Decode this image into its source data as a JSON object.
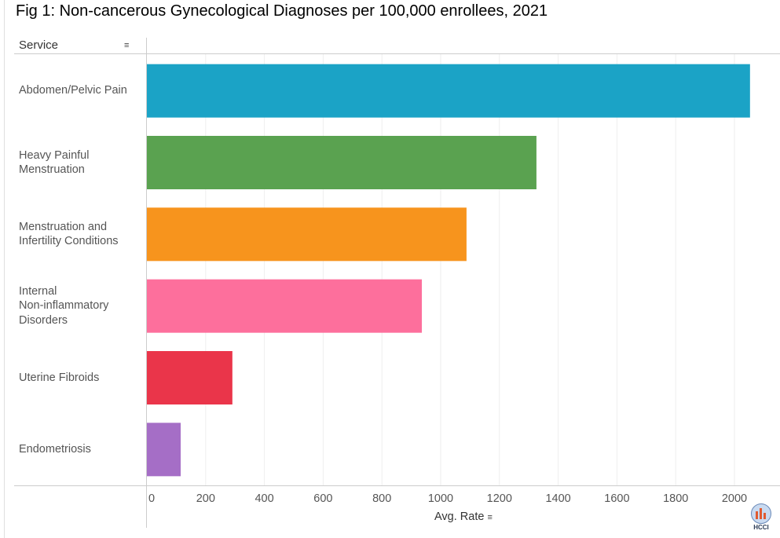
{
  "title": "Fig 1: Non-cancerous Gynecological Diagnoses per 100,000 enrollees, 2021",
  "logo_text": "HCCI",
  "chart_data": {
    "type": "bar",
    "orientation": "horizontal",
    "title": "Fig 1: Non-cancerous Gynecological Diagnoses per 100,000 enrollees, 2021",
    "category_header": "Service",
    "xlabel": "Avg. Rate",
    "xlim": [
      0,
      2100
    ],
    "xticks": [
      0,
      200,
      400,
      600,
      800,
      1000,
      1200,
      1400,
      1600,
      1800,
      2000
    ],
    "grid": true,
    "categories": [
      [
        "Abdomen/Pelvic Pain"
      ],
      [
        "Heavy Painful",
        "Menstruation"
      ],
      [
        "Menstruation and",
        "Infertility Conditions"
      ],
      [
        "Internal",
        "Non-inflammatory",
        "Disorders"
      ],
      [
        "Uterine Fibroids"
      ],
      [
        "Endometriosis"
      ]
    ],
    "values": [
      2053,
      1326,
      1088,
      936,
      291,
      115
    ],
    "colors": [
      "#1ba3c6",
      "#5aa250",
      "#f7941d",
      "#fd6f9c",
      "#ea354a",
      "#a56ec6"
    ]
  }
}
